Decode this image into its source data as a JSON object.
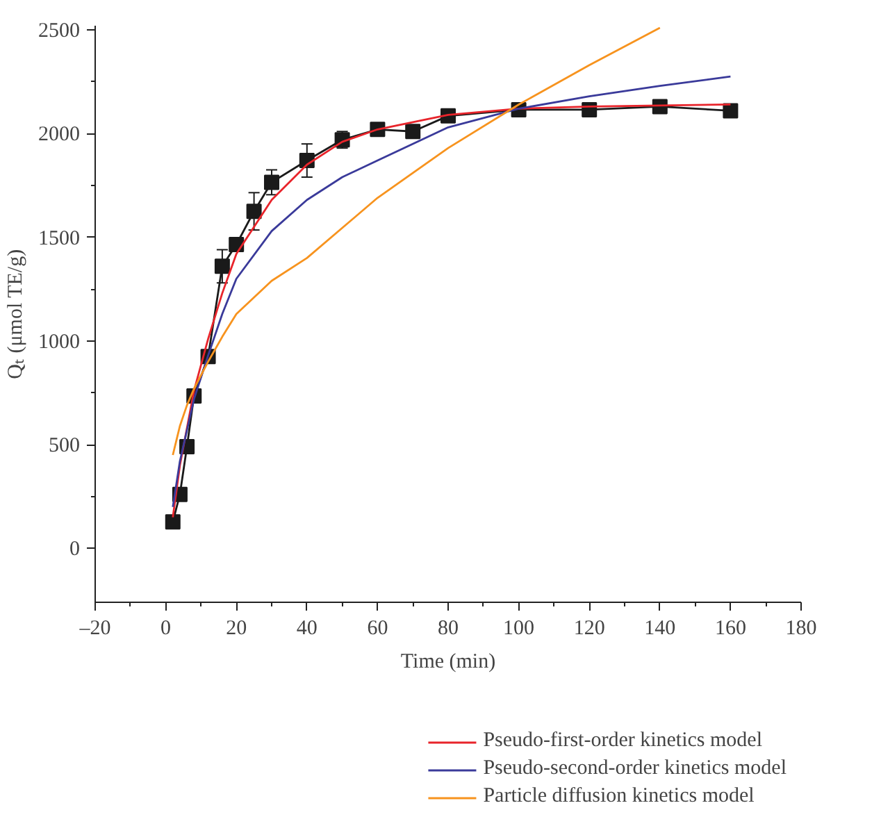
{
  "chart_data": {
    "type": "line",
    "xlabel": "Time (min)",
    "ylabel": "Qₜ (μmol TE/g)",
    "xlim": [
      -20,
      180
    ],
    "ylim": [
      -260,
      2520
    ],
    "xticks": [
      {
        "value": -20,
        "label": "–20"
      },
      0,
      20,
      40,
      60,
      80,
      100,
      120,
      140,
      160,
      180
    ],
    "yticks": [
      0,
      500,
      1000,
      1500,
      2000,
      2500
    ],
    "grid": false,
    "legend": "bottom",
    "series": [
      {
        "color": "#1a1a1a",
        "marker": "square",
        "x": [
          2,
          4,
          6,
          8,
          12,
          16,
          20,
          25,
          30,
          40,
          50,
          60,
          70,
          80,
          100,
          120,
          140,
          160
        ],
        "values": [
          128,
          260,
          490,
          735,
          925,
          1360,
          1465,
          1625,
          1765,
          1870,
          1970,
          2020,
          2010,
          2085,
          2115,
          2115,
          2130,
          2110
        ],
        "errors": [
          null,
          null,
          null,
          null,
          null,
          80,
          null,
          90,
          60,
          80,
          40,
          null,
          30,
          30,
          null,
          null,
          null,
          null
        ]
      },
      {
        "name": "Pseudo-first-order kinetics model",
        "color": "#e8242b",
        "marker": "none",
        "x": [
          2,
          4,
          8,
          12,
          16,
          20,
          30,
          40,
          50,
          60,
          80,
          100,
          120,
          140,
          160
        ],
        "values": [
          150,
          400,
          760,
          1010,
          1230,
          1420,
          1680,
          1850,
          1960,
          2020,
          2090,
          2120,
          2130,
          2135,
          2140
        ]
      },
      {
        "name": "Pseudo-second-order kinetics model",
        "color": "#3a3a9a",
        "marker": "none",
        "x": [
          2,
          4,
          8,
          12,
          16,
          20,
          30,
          40,
          50,
          60,
          80,
          100,
          120,
          140,
          160
        ],
        "values": [
          200,
          420,
          720,
          930,
          1130,
          1300,
          1530,
          1680,
          1790,
          1870,
          2030,
          2120,
          2180,
          2230,
          2275
        ]
      },
      {
        "name": "Particle diffusion kinetics model",
        "color": "#f7931e",
        "marker": "none",
        "x": [
          2,
          4,
          6,
          8,
          12,
          16,
          20,
          30,
          40,
          60,
          80,
          100,
          120,
          140
        ],
        "values": [
          450,
          590,
          690,
          770,
          900,
          1020,
          1130,
          1290,
          1400,
          1690,
          1930,
          2140,
          2330,
          2510
        ]
      }
    ]
  }
}
